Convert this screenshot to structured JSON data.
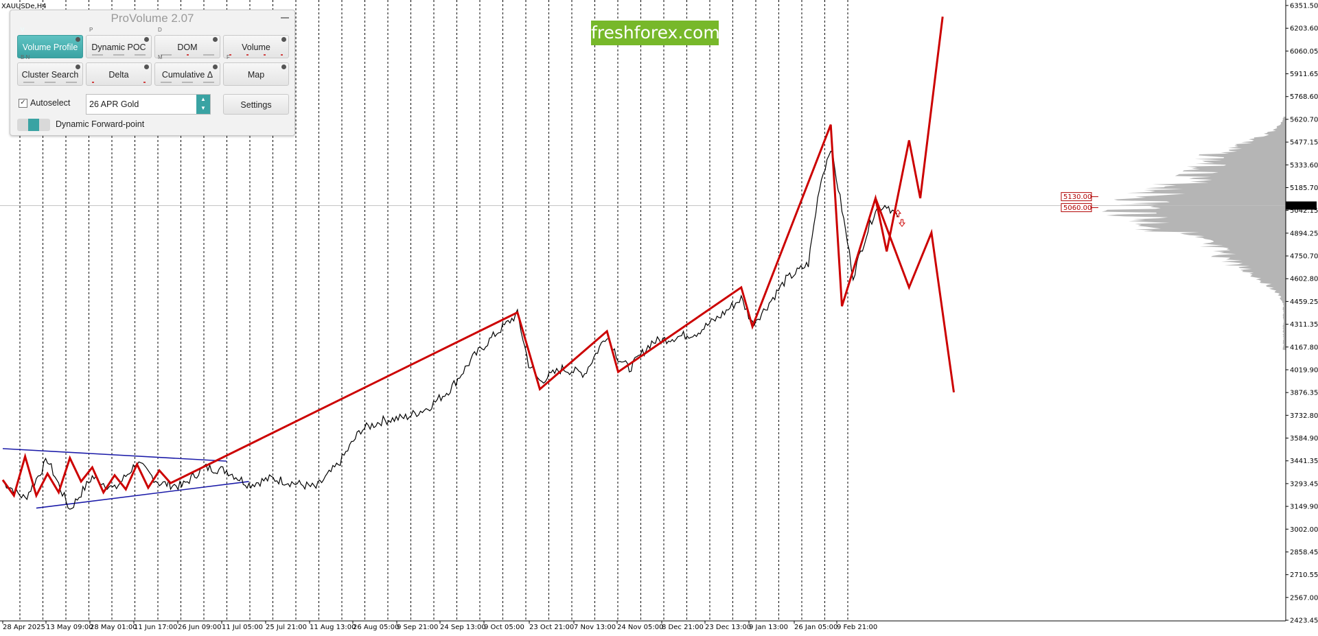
{
  "window": {
    "symbol_label": "XAUUSDe,H4"
  },
  "watermark": {
    "text": "freshforex.com",
    "color": "#77b82a"
  },
  "panel": {
    "title": "ProVolume 2.07",
    "buttons": [
      {
        "label": "Volume Profile",
        "hotkey": "V",
        "active": true
      },
      {
        "label": "Dynamic POC",
        "hotkey": "P",
        "active": false
      },
      {
        "label": "DOM",
        "hotkey": "D",
        "active": false
      },
      {
        "label": "Volume",
        "hotkey": "",
        "active": false
      },
      {
        "label": "Cluster Search",
        "hotkey": "B  N",
        "active": false
      },
      {
        "label": "Delta",
        "hotkey": "",
        "active": false
      },
      {
        "label": "Cumulative Δ",
        "hotkey": "M",
        "active": false
      },
      {
        "label": "Map",
        "hotkey": "F",
        "active": false
      }
    ],
    "autoselect_label": "Autoselect",
    "autoselect_checked": true,
    "instrument_value": "26 APR Gold",
    "settings_label": "Settings",
    "toggle_label": "Dynamic Forward-point",
    "accent": "#3aa3a3"
  },
  "chart_data": {
    "type": "line",
    "instrument": "XAUUSDe,H4",
    "y_ticks": [
      "6351.50",
      "6203.60",
      "6060.05",
      "5911.65",
      "5768.60",
      "5620.70",
      "5477.15",
      "5333.60",
      "5185.70",
      "5042.15",
      "4894.25",
      "4750.70",
      "4602.80",
      "4459.25",
      "4311.35",
      "4167.80",
      "4019.90",
      "3876.35",
      "3732.80",
      "3584.90",
      "3441.35",
      "3293.45",
      "3149.90",
      "3002.00",
      "2858.45",
      "2710.55",
      "2567.00",
      "2423.45"
    ],
    "ylim": [
      2423.45,
      6351.5
    ],
    "x_ticks": [
      "28 Apr 2025",
      "13 May 09:00",
      "28 May 01:00",
      "11 Jun 17:00",
      "26 Jun 09:00",
      "11 Jul 05:00",
      "25 Jul 21:00",
      "11 Aug 13:00",
      "26 Aug 05:00",
      "9 Sep 21:00",
      "24 Sep 13:00",
      "9 Oct 05:00",
      "23 Oct 21:00",
      "7 Nov 13:00",
      "24 Nov 05:00",
      "8 Dec 21:00",
      "23 Dec 13:00",
      "9 Jan 13:00",
      "26 Jan 05:00",
      "9 Feb 21:00"
    ],
    "current_price": "5073.09",
    "price_labels": [
      "5130.00",
      "5060.00"
    ],
    "price_series": [
      [
        0,
        3310
      ],
      [
        2,
        3200
      ],
      [
        4,
        3450
      ],
      [
        6,
        3130
      ],
      [
        8,
        3340
      ],
      [
        10,
        3260
      ],
      [
        12,
        3430
      ],
      [
        14,
        3300
      ],
      [
        16,
        3280
      ],
      [
        18,
        3400
      ],
      [
        20,
        3380
      ],
      [
        22,
        3290
      ],
      [
        24,
        3330
      ],
      [
        26,
        3300
      ],
      [
        28,
        3270
      ],
      [
        30,
        3420
      ],
      [
        32,
        3640
      ],
      [
        34,
        3700
      ],
      [
        36,
        3720
      ],
      [
        38,
        3780
      ],
      [
        40,
        3900
      ],
      [
        42,
        4100
      ],
      [
        44,
        4250
      ],
      [
        46,
        4380
      ],
      [
        47,
        4060
      ],
      [
        48,
        3950
      ],
      [
        50,
        4030
      ],
      [
        52,
        4000
      ],
      [
        54,
        4250
      ],
      [
        55,
        4100
      ],
      [
        56,
        4030
      ],
      [
        58,
        4200
      ],
      [
        60,
        4230
      ],
      [
        62,
        4260
      ],
      [
        64,
        4360
      ],
      [
        66,
        4480
      ],
      [
        67,
        4320
      ],
      [
        68,
        4400
      ],
      [
        70,
        4600
      ],
      [
        72,
        4700
      ],
      [
        73,
        5200
      ],
      [
        74,
        5450
      ],
      [
        75,
        5050
      ],
      [
        76,
        4620
      ],
      [
        77,
        4850
      ],
      [
        78,
        5050
      ],
      [
        79,
        5080
      ],
      [
        80,
        5000
      ]
    ],
    "zigzag": [
      [
        0,
        3320
      ],
      [
        1,
        3220
      ],
      [
        2,
        3470
      ],
      [
        3,
        3220
      ],
      [
        4,
        3360
      ],
      [
        5,
        3240
      ],
      [
        6,
        3460
      ],
      [
        7,
        3310
      ],
      [
        8,
        3400
      ],
      [
        9,
        3240
      ],
      [
        10,
        3350
      ],
      [
        11,
        3260
      ],
      [
        12,
        3420
      ],
      [
        13,
        3270
      ],
      [
        14,
        3380
      ],
      [
        15,
        3300
      ],
      [
        46,
        4390
      ],
      [
        48,
        3900
      ],
      [
        54,
        4270
      ],
      [
        55,
        4010
      ],
      [
        66,
        4550
      ],
      [
        67,
        4300
      ],
      [
        74,
        5590
      ],
      [
        75,
        4430
      ],
      [
        78,
        5120
      ],
      [
        79,
        4780
      ],
      [
        81,
        5490
      ],
      [
        82,
        5120
      ],
      [
        84,
        6280
      ]
    ],
    "forecast_down": [
      [
        78,
        5120
      ],
      [
        81,
        4550
      ],
      [
        83,
        4900
      ],
      [
        85,
        3880
      ]
    ],
    "triangle": {
      "upper": [
        [
          0,
          3520
        ],
        [
          20,
          3440
        ]
      ],
      "lower": [
        [
          3,
          3140
        ],
        [
          22,
          3310
        ]
      ]
    },
    "line_colors": {
      "price": "#000000",
      "zigzag": "#cc0000",
      "triangle": "#1a1aa8"
    }
  }
}
